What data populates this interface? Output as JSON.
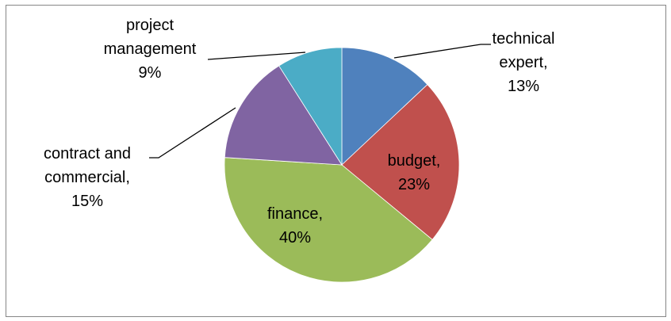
{
  "chart_data": {
    "type": "pie",
    "title": "",
    "legend": "none",
    "slices": [
      {
        "name": "technical expert",
        "value": 13,
        "label_lines": [
          "technical",
          "expert,",
          "13%"
        ],
        "color": "#4F81BD"
      },
      {
        "name": "budget",
        "value": 23,
        "label_lines": [
          "budget,",
          "23%"
        ],
        "color": "#C0504D"
      },
      {
        "name": "finance",
        "value": 40,
        "label_lines": [
          "finance,",
          "40%"
        ],
        "color": "#9BBB59"
      },
      {
        "name": "contract and commercial",
        "value": 15,
        "label_lines": [
          "contract and",
          "commercial,",
          "15%"
        ],
        "color": "#8064A2"
      },
      {
        "name": "project management",
        "value": 9,
        "label_lines": [
          "project",
          "management",
          "9%"
        ],
        "color": "#4BACC6"
      }
    ]
  }
}
